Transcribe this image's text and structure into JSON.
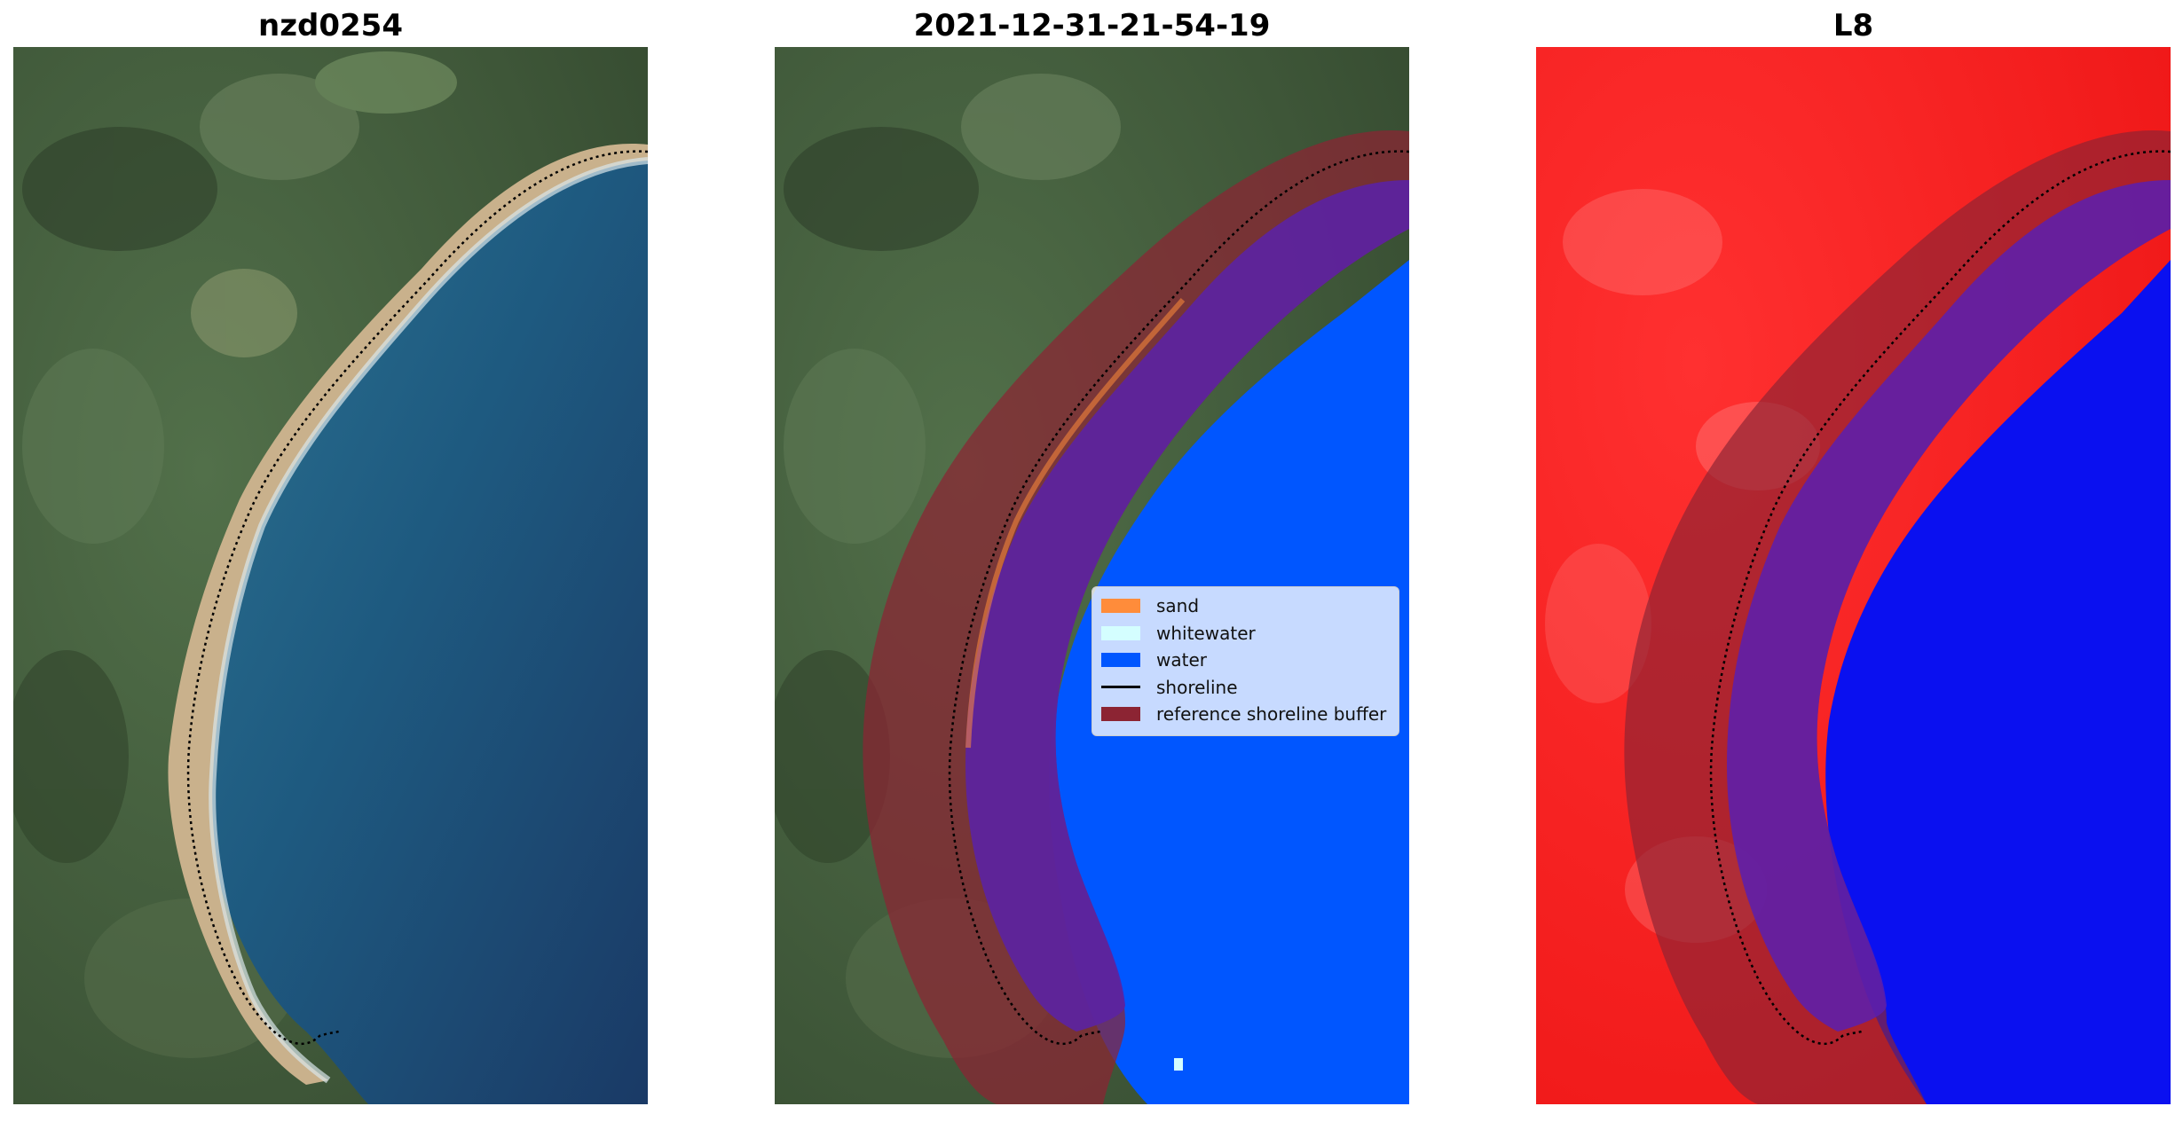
{
  "panels": [
    {
      "title": "nzd0254"
    },
    {
      "title": "2021-12-31-21-54-19"
    },
    {
      "title": "L8"
    }
  ],
  "legend": {
    "items": [
      {
        "label": "sand",
        "color": "#ff8c3a",
        "kind": "patch"
      },
      {
        "label": "whitewater",
        "color": "#d4feff",
        "kind": "patch"
      },
      {
        "label": "water",
        "color": "#0056ff",
        "kind": "patch"
      },
      {
        "label": "shoreline",
        "color": "#000000",
        "kind": "line"
      },
      {
        "label": "reference shoreline buffer",
        "color": "#8c2433",
        "kind": "patch"
      }
    ]
  },
  "colors": {
    "land_dark": "#3f5a3a",
    "sea": "#1e5a80",
    "buffer": "#8c2433",
    "water_class": "#0056ff",
    "index_land": "#ff1a1a",
    "index_water": "#0a10f0"
  }
}
